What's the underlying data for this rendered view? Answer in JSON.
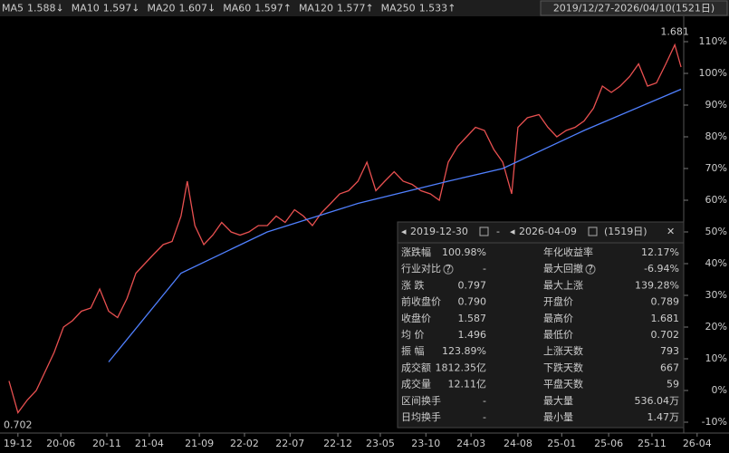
{
  "toolbar": {
    "ma": [
      {
        "name": "MA5",
        "value": 1.588,
        "trend": "↓",
        "color": "#f0a030"
      },
      {
        "name": "MA10",
        "value": 1.597,
        "trend": "↓",
        "color": "#e8d020"
      },
      {
        "name": "MA20",
        "value": 1.607,
        "trend": "↓",
        "color": "#d050d0"
      },
      {
        "name": "MA60",
        "value": 1.597,
        "trend": "↑",
        "color": "#30c030"
      },
      {
        "name": "MA120",
        "value": 1.577,
        "trend": "↑",
        "color": "#40c0e0"
      },
      {
        "name": "MA250",
        "value": 1.533,
        "trend": "↑",
        "color": "#5080ff"
      }
    ],
    "range": "2019/12/27-2026/04/10(1521日)"
  },
  "chart_data": {
    "type": "line",
    "xlim": [
      0,
      1520
    ],
    "ylim": [
      -10,
      110
    ],
    "xticks": [
      {
        "value": 30,
        "label": "19-12"
      },
      {
        "value": 126,
        "label": "20-06"
      },
      {
        "value": 229,
        "label": "20-11"
      },
      {
        "value": 324,
        "label": "21-04"
      },
      {
        "value": 436,
        "label": "21-09"
      },
      {
        "value": 537,
        "label": "22-02"
      },
      {
        "value": 639,
        "label": "22-07"
      },
      {
        "value": 746,
        "label": "22-12"
      },
      {
        "value": 841,
        "label": "23-05"
      },
      {
        "value": 943,
        "label": "23-10"
      },
      {
        "value": 1044,
        "label": "24-03"
      },
      {
        "value": 1149,
        "label": "24-08"
      },
      {
        "value": 1247,
        "label": "25-01"
      },
      {
        "value": 1352,
        "label": "25-06"
      },
      {
        "value": 1449,
        "label": "25-11"
      },
      {
        "value": 1550,
        "label": "26-04"
      }
    ],
    "yticks": [
      {
        "value": 110,
        "label": "110%"
      },
      {
        "value": 100,
        "label": "100%"
      },
      {
        "value": 90,
        "label": "90%"
      },
      {
        "value": 80,
        "label": "80%"
      },
      {
        "value": 70,
        "label": "70%"
      },
      {
        "value": 60,
        "label": "60%"
      },
      {
        "value": 50,
        "label": "50%"
      },
      {
        "value": 40,
        "label": "40%"
      },
      {
        "value": 30,
        "label": "30%"
      },
      {
        "value": 20,
        "label": "20%"
      },
      {
        "value": 10,
        "label": "10%"
      },
      {
        "value": 0,
        "label": "0%"
      },
      {
        "value": -10,
        "label": "-10%"
      }
    ],
    "series": [
      {
        "color": "#e85050",
        "x": [
          10,
          30,
          51,
          71,
          91,
          111,
          132,
          152,
          172,
          193,
          213,
          233,
          253,
          274,
          294,
          314,
          334,
          355,
          375,
          395,
          409,
          426,
          446,
          466,
          486,
          507,
          527,
          547,
          568,
          588,
          608,
          628,
          649,
          669,
          689,
          709,
          730,
          750,
          770,
          791,
          811,
          831,
          851,
          872,
          892,
          912,
          932,
          953,
          973,
          993,
          1014,
          1034,
          1054,
          1074,
          1095,
          1115,
          1135,
          1149,
          1170,
          1196,
          1216,
          1236,
          1257,
          1277,
          1297,
          1318,
          1338,
          1358,
          1378,
          1399,
          1419,
          1439,
          1459,
          1480,
          1500,
          1514
        ],
        "values": [
          3,
          -7,
          -3,
          0,
          6,
          12,
          20,
          22,
          25,
          26,
          32,
          25,
          23,
          29,
          37,
          40,
          43,
          46,
          47,
          55,
          66,
          52,
          46,
          49,
          53,
          50,
          49,
          50,
          52,
          52,
          55,
          53,
          57,
          55,
          52,
          56,
          59,
          62,
          63,
          66,
          72,
          63,
          66,
          69,
          66,
          65,
          63,
          62,
          60,
          72,
          77,
          80,
          83,
          82,
          76,
          72,
          62,
          83,
          86,
          87,
          83,
          80,
          82,
          83,
          85,
          89,
          96,
          94,
          96,
          99,
          103,
          96,
          97,
          103,
          109,
          102
        ]
      },
      {
        "color": "#5080ff",
        "x": [
          233,
          395,
          588,
          791,
          993,
          1115,
          1297,
          1514
        ],
        "values": [
          9,
          37,
          50,
          59,
          66,
          70,
          82,
          95
        ]
      }
    ],
    "annotations": [
      {
        "text": "1.681",
        "x": 1500,
        "y": 113,
        "color": "#e85050"
      },
      {
        "text": "0.702",
        "x": 30,
        "y": -11,
        "color": "#40c040"
      }
    ]
  },
  "panel": {
    "start": "2019-12-30",
    "end": "2026-04-09",
    "days": "(1519日)",
    "rows": [
      {
        "l1": "涨跌幅",
        "v1": "100.98%",
        "c1": "#f04848",
        "l2": "年化收益率",
        "v2": "12.17%",
        "c2": "#f04848"
      },
      {
        "l1": "行业对比",
        "v1": "-",
        "c1": "#dddddd",
        "l2": "最大回撤",
        "v2": "-6.94%",
        "c2": "#30c030"
      },
      {
        "l1": "涨 跌",
        "v1": "0.797",
        "c1": "#f04848",
        "l2": "最大上涨",
        "v2": "139.28%",
        "c2": "#f04848"
      },
      {
        "l1": "前收盘价",
        "v1": "0.790",
        "c1": "#f04848",
        "l2": "开盘价",
        "v2": "0.789",
        "c2": "#f04848"
      },
      {
        "l1": "收盘价",
        "v1": "1.587",
        "c1": "#f04848",
        "l2": "最高价",
        "v2": "1.681",
        "c2": "#f04848"
      },
      {
        "l1": "均 价",
        "v1": "1.496",
        "c1": "#f04848",
        "l2": "最低价",
        "v2": "0.702",
        "c2": "#f04848"
      },
      {
        "l1": "振 幅",
        "v1": "123.89%",
        "c1": "#f04848",
        "l2": "上涨天数",
        "v2": "793",
        "c2": "#f04848"
      },
      {
        "l1": "成交额",
        "v1": "1812.35亿",
        "c1": "#eeeeee",
        "l2": "下跌天数",
        "v2": "667",
        "c2": "#30c030"
      },
      {
        "l1": "成交量",
        "v1": "12.11亿",
        "c1": "#eeeeee",
        "l2": "平盘天数",
        "v2": "59",
        "c2": "#eeeeee"
      },
      {
        "l1": "区间换手",
        "v1": "-",
        "c1": "#eeeeee",
        "l2": "最大量",
        "v2": "536.04万",
        "c2": "#eeeeee"
      },
      {
        "l1": "日均换手",
        "v1": "-",
        "c1": "#eeeeee",
        "l2": "最小量",
        "v2": "1.47万",
        "c2": "#eeeeee"
      }
    ]
  }
}
